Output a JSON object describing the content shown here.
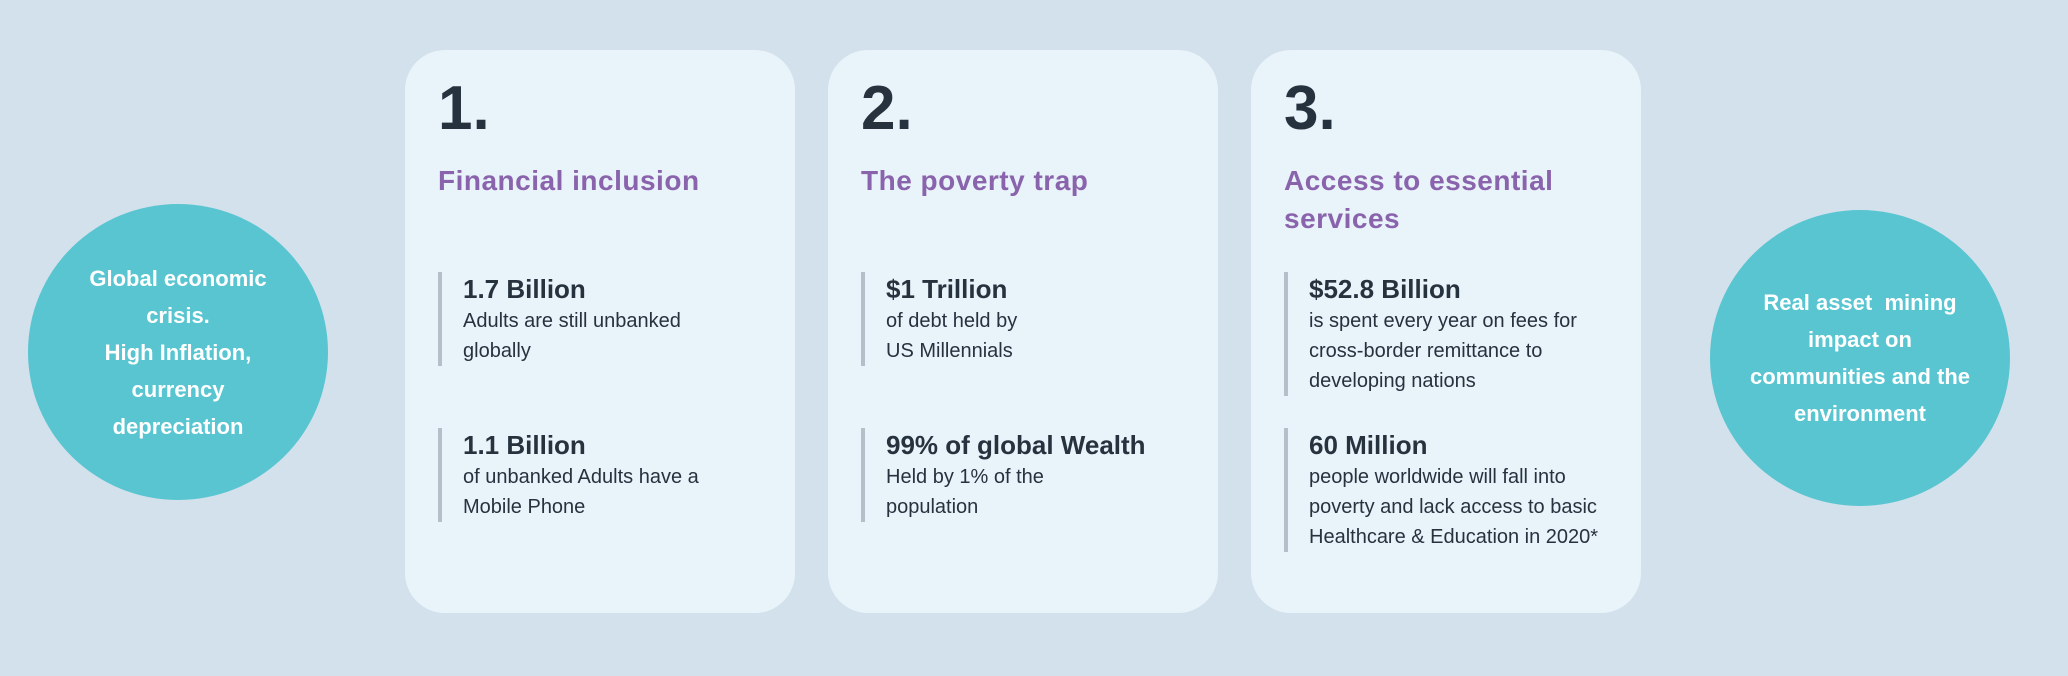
{
  "colors": {
    "background": "#d3e1ec",
    "card_background": "#e9f3fa",
    "bubble_fill": "#58c5d1",
    "bubble_text": "#ffffff",
    "heading_purple": "#8a63ad",
    "text_dark": "#26323e",
    "stat_bar": "#b3c0ca"
  },
  "bubbles": {
    "left": {
      "text": "Global economic\ncrisis.\nHigh Inflation,\ncurrency\ndepreciation"
    },
    "right": {
      "text": "Real asset  mining\nimpact on\ncommunities and the\nenvironment"
    }
  },
  "cards": [
    {
      "number": "1.",
      "title": "Financial inclusion",
      "stats": [
        {
          "value": "1.7 Billion",
          "description": "Adults are still unbanked\nglobally"
        },
        {
          "value": "1.1 Billion",
          "description": "of unbanked Adults have a\nMobile Phone"
        }
      ]
    },
    {
      "number": "2.",
      "title": "The poverty trap",
      "stats": [
        {
          "value": "$1 Trillion",
          "description": "of debt held by\nUS Millennials"
        },
        {
          "value": "99% of global Wealth",
          "description": "Held by 1% of the\npopulation"
        }
      ]
    },
    {
      "number": "3.",
      "title": "Access to essential\nservices",
      "stats": [
        {
          "value": "$52.8 Billion",
          "description": "is spent every year on fees for\ncross-border remittance to\ndeveloping nations"
        },
        {
          "value": "60 Million",
          "description": "people worldwide will fall into\npoverty and lack access to basic\nHealthcare & Education in 2020*"
        }
      ]
    }
  ]
}
